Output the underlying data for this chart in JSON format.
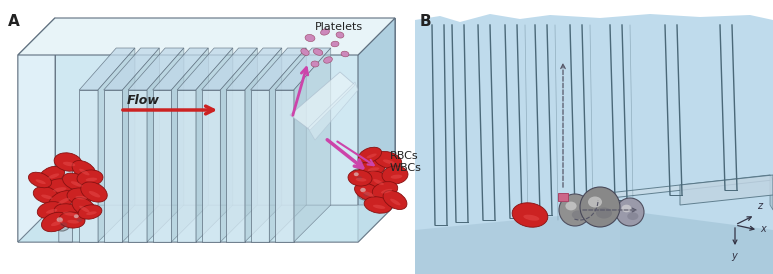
{
  "figure_width": 7.73,
  "figure_height": 2.74,
  "dpi": 100,
  "bg_color": "#ffffff",
  "panel_A": {
    "label": "A",
    "flow_label": "Flow",
    "platelets_label": "Platelets",
    "rbcs_label": "RBCs\nWBCs",
    "box_face": "#cce8f0",
    "box_top": "#e8f4f8",
    "box_side": "#b0d0e0",
    "box_edge": "#607080",
    "fin_color": "#708898",
    "rbc_color": "#cc2222",
    "rbc_edge": "#991111",
    "platelet_color": "#cc88bb",
    "platelet_edge": "#994466",
    "flow_arrow_color": "#cc2222",
    "sep_arrow_color": "#cc44aa",
    "funnel_color": "#ddeeee"
  },
  "panel_B": {
    "label": "B",
    "box_bg": "#b8d8ea",
    "channel_color": "#607888",
    "floor_color": "#a0c4d8",
    "ledge_color": "#b8d2e0",
    "rbc_color": "#cc2222",
    "sphere_color": "#999999",
    "sphere_edge": "#555555",
    "trap_color": "#cc6688",
    "arrow_color": "#555566",
    "axis_color": "#333344"
  }
}
